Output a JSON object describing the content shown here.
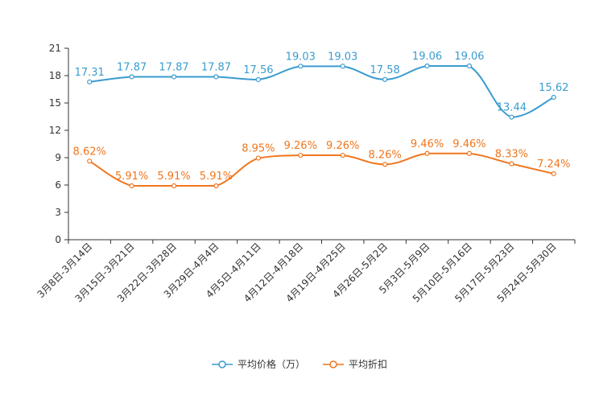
{
  "chart_data": {
    "type": "line",
    "title": "",
    "categories": [
      "3月8日-3月14日",
      "3月15日-3月21日",
      "3月22日-3月28日",
      "3月29日-4月4日",
      "4月5日-4月11日",
      "4月12日-4月18日",
      "4月19日-4月25日",
      "4月26日-5月2日",
      "5月3日-5月9日",
      "5月10日-5月16日",
      "5月17日-5月23日",
      "5月24日-5月30日"
    ],
    "ylim": [
      0,
      21
    ],
    "yticks": [
      0,
      3,
      6,
      9,
      12,
      15,
      18,
      21
    ],
    "grid": false,
    "legend_position": "bottom-center",
    "series": [
      {
        "name": "平均价格（万）",
        "color": "#3a9ccf",
        "values": [
          17.31,
          17.87,
          17.87,
          17.87,
          17.56,
          19.03,
          19.03,
          17.58,
          19.06,
          19.06,
          13.44,
          15.62
        ],
        "labels": [
          "17.31",
          "17.87",
          "17.87",
          "17.87",
          "17.56",
          "19.03",
          "19.03",
          "17.58",
          "19.06",
          "19.06",
          "13.44",
          "15.62"
        ]
      },
      {
        "name": "平均折扣",
        "color": "#f0761e",
        "values": [
          8.62,
          5.91,
          5.91,
          5.91,
          8.95,
          9.26,
          9.26,
          8.26,
          9.46,
          9.46,
          8.33,
          7.24
        ],
        "labels": [
          "8.62%",
          "5.91%",
          "5.91%",
          "5.91%",
          "8.95%",
          "9.26%",
          "9.26%",
          "8.26%",
          "9.46%",
          "9.46%",
          "8.33%",
          "7.24%"
        ]
      }
    ]
  }
}
